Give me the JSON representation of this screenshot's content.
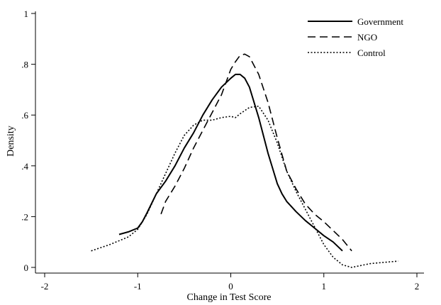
{
  "chart_data": {
    "type": "line",
    "title": "",
    "xlabel": "Change in Test Score",
    "ylabel": "Density",
    "xlim": [
      -2,
      2
    ],
    "ylim": [
      0,
      1
    ],
    "xticks": [
      -2,
      -1,
      0,
      1,
      2
    ],
    "xtick_labels": [
      "-2",
      "-1",
      "0",
      "1",
      "2"
    ],
    "yticks": [
      0,
      0.2,
      0.4,
      0.6,
      0.8,
      1
    ],
    "ytick_labels": [
      "0",
      ".2",
      ".4",
      ".6",
      ".8",
      "1"
    ],
    "grid": false,
    "legend_position": "top-right",
    "series": [
      {
        "name": "Government",
        "style": "solid",
        "x": [
          -1.2,
          -1.1,
          -1.0,
          -0.95,
          -0.9,
          -0.8,
          -0.7,
          -0.6,
          -0.5,
          -0.4,
          -0.3,
          -0.2,
          -0.1,
          0.0,
          0.05,
          0.1,
          0.15,
          0.2,
          0.3,
          0.4,
          0.5,
          0.55,
          0.6,
          0.7,
          0.8,
          0.9,
          1.0,
          1.1,
          1.2
        ],
        "y": [
          0.13,
          0.14,
          0.155,
          0.18,
          0.215,
          0.29,
          0.34,
          0.4,
          0.47,
          0.53,
          0.6,
          0.66,
          0.71,
          0.745,
          0.76,
          0.76,
          0.745,
          0.71,
          0.59,
          0.45,
          0.33,
          0.29,
          0.26,
          0.22,
          0.185,
          0.155,
          0.125,
          0.1,
          0.065
        ]
      },
      {
        "name": "NGO",
        "style": "dashed",
        "x": [
          -0.75,
          -0.7,
          -0.6,
          -0.5,
          -0.4,
          -0.3,
          -0.2,
          -0.1,
          0.0,
          0.05,
          0.1,
          0.15,
          0.2,
          0.3,
          0.4,
          0.5,
          0.6,
          0.7,
          0.8,
          0.9,
          1.0,
          1.1,
          1.2,
          1.3
        ],
        "y": [
          0.21,
          0.26,
          0.32,
          0.39,
          0.47,
          0.54,
          0.61,
          0.68,
          0.78,
          0.81,
          0.835,
          0.84,
          0.83,
          0.76,
          0.65,
          0.51,
          0.38,
          0.31,
          0.25,
          0.21,
          0.18,
          0.145,
          0.11,
          0.065
        ]
      },
      {
        "name": "Control",
        "style": "dotted",
        "x": [
          -1.5,
          -1.3,
          -1.1,
          -1.0,
          -0.9,
          -0.8,
          -0.7,
          -0.6,
          -0.5,
          -0.4,
          -0.3,
          -0.2,
          -0.1,
          0.0,
          0.05,
          0.1,
          0.2,
          0.3,
          0.4,
          0.5,
          0.6,
          0.7,
          0.8,
          0.9,
          1.0,
          1.1,
          1.2,
          1.3,
          1.5,
          1.8
        ],
        "y": [
          0.065,
          0.09,
          0.12,
          0.15,
          0.21,
          0.29,
          0.37,
          0.45,
          0.52,
          0.56,
          0.58,
          0.58,
          0.59,
          0.595,
          0.59,
          0.605,
          0.63,
          0.635,
          0.58,
          0.49,
          0.38,
          0.3,
          0.23,
          0.16,
          0.09,
          0.04,
          0.01,
          0.0,
          0.015,
          0.025
        ]
      }
    ]
  }
}
